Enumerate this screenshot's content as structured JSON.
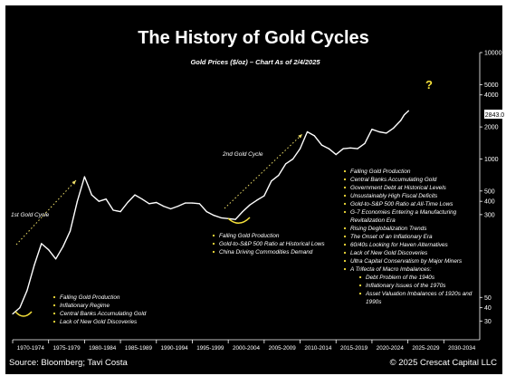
{
  "chart_data": {
    "type": "line",
    "title": "The History of Gold Cycles",
    "subtitle": "Gold Prices ($/oz) – Chart As of 2/4/2025",
    "y_scale": "log",
    "ylim": [
      20,
      10000
    ],
    "y_ticks": [
      "10000",
      "5000",
      "4000",
      "2000",
      "1000",
      "500",
      "400",
      "300",
      "50",
      "40",
      "30"
    ],
    "x_categories": [
      "1970-1974",
      "1975-1979",
      "1980-1984",
      "1985-1989",
      "1990-1994",
      "1995-1999",
      "2000-2004",
      "2005-2009",
      "2010-2014",
      "2015-2019",
      "2020-2024",
      "2025-2029",
      "2030-2034"
    ],
    "xlim": [
      1970,
      2035
    ],
    "series": [
      {
        "values": [
          [
            1970.0,
            35
          ],
          [
            1971.0,
            40
          ],
          [
            1972.0,
            58
          ],
          [
            1973.0,
            100
          ],
          [
            1974.0,
            160
          ],
          [
            1975.0,
            140
          ],
          [
            1976.0,
            115
          ],
          [
            1977.0,
            150
          ],
          [
            1978.0,
            210
          ],
          [
            1979.0,
            400
          ],
          [
            1980.0,
            680
          ],
          [
            1980.5,
            560
          ],
          [
            1981.0,
            460
          ],
          [
            1982.0,
            400
          ],
          [
            1983.0,
            420
          ],
          [
            1984.0,
            330
          ],
          [
            1985.0,
            320
          ],
          [
            1986.0,
            390
          ],
          [
            1987.0,
            460
          ],
          [
            1988.0,
            420
          ],
          [
            1989.0,
            380
          ],
          [
            1990.0,
            390
          ],
          [
            1991.0,
            360
          ],
          [
            1992.0,
            340
          ],
          [
            1993.0,
            360
          ],
          [
            1994.0,
            385
          ],
          [
            1995.0,
            385
          ],
          [
            1996.0,
            380
          ],
          [
            1997.0,
            320
          ],
          [
            1998.0,
            295
          ],
          [
            1999.0,
            280
          ],
          [
            2000.0,
            275
          ],
          [
            2001.0,
            270
          ],
          [
            2002.0,
            320
          ],
          [
            2003.0,
            370
          ],
          [
            2004.0,
            410
          ],
          [
            2005.0,
            450
          ],
          [
            2006.0,
            620
          ],
          [
            2007.0,
            700
          ],
          [
            2008.0,
            900
          ],
          [
            2009.0,
            1000
          ],
          [
            2010.0,
            1250
          ],
          [
            2011.0,
            1800
          ],
          [
            2012.0,
            1650
          ],
          [
            2013.0,
            1350
          ],
          [
            2014.0,
            1250
          ],
          [
            2015.0,
            1100
          ],
          [
            2016.0,
            1250
          ],
          [
            2017.0,
            1270
          ],
          [
            2018.0,
            1250
          ],
          [
            2019.0,
            1400
          ],
          [
            2020.0,
            1900
          ],
          [
            2021.0,
            1800
          ],
          [
            2022.0,
            1750
          ],
          [
            2023.0,
            1950
          ],
          [
            2024.0,
            2300
          ],
          [
            2024.5,
            2600
          ],
          [
            2025.1,
            2843
          ]
        ]
      }
    ],
    "last_value_label": "2843.0",
    "question_mark": "?",
    "cycle_labels": {
      "first": "1st Gold Cycle",
      "second": "2nd Gold Cycle"
    },
    "annotations": {
      "first_cycle": [
        "Falling Gold Production",
        "Inflationary Regime",
        "Central Banks Accumulating Gold",
        "Lack of New Gold Discoveries"
      ],
      "second_cycle": [
        "Falling Gold Production",
        "Gold-to-S&P 500 Ratio at Historical Lows",
        "China Driving Commodities Demand"
      ],
      "third_cycle": [
        "Falling Gold Production",
        "Central Banks Accumulating Gold",
        "Government Debt at Historical Levels",
        "Unsustainably High Fiscal Deficits",
        "Gold-to-S&P 500 Ratio at All-Time Lows",
        "G-7 Economies Entering a Manufacturing Revitalization Era",
        "Rising Deglobalization Trends",
        "The Onset of an Inflationary Era",
        "60/40s Looking for Haven Alternatives",
        "Lack of New Gold Discoveries",
        "Ultra Capital Conservatism by Major Miners",
        "A Trifecta of Macro Imbalances:"
      ],
      "third_cycle_sub": [
        "Debt Problem of the 1940s",
        "Inflationary Issues of the 1970s",
        "Asset Valuation Imbalances of 1920s and 1990s"
      ]
    },
    "source": "Source: Bloomberg; Tavi Costa",
    "copyright": "© 2025 Crescat Capital LLC",
    "colors": {
      "background": "#000000",
      "line": "#ffffff",
      "arrow": "#f0e06a",
      "accent": "#f5e03a",
      "text": "#ffffff"
    }
  }
}
